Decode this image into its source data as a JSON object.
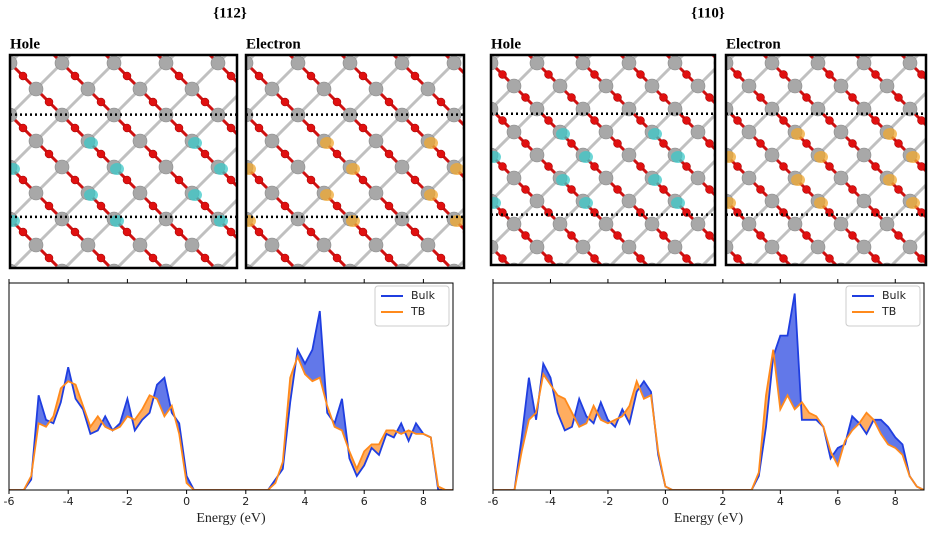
{
  "panels": [
    {
      "title": "{112}",
      "images": [
        "Hole",
        "Electron"
      ]
    },
    {
      "title": "{110}",
      "images": [
        "Hole",
        "Electron"
      ]
    }
  ],
  "chart_data": [
    {
      "type": "line",
      "xlabel": "Energy (eV)",
      "xlim": [
        -6,
        9
      ],
      "xticks": [
        -6,
        -4,
        -2,
        0,
        2,
        4,
        6,
        8
      ],
      "ylim": [
        0,
        5.9
      ],
      "legend": "upper right",
      "fill_between": true,
      "x": [
        -6,
        -5.75,
        -5.5,
        -5.25,
        -5,
        -4.75,
        -4.5,
        -4.25,
        -4,
        -3.75,
        -3.5,
        -3.25,
        -3,
        -2.75,
        -2.5,
        -2.25,
        -2,
        -1.75,
        -1.5,
        -1.25,
        -1,
        -0.75,
        -0.5,
        -0.25,
        0,
        0.25,
        0.5,
        0.75,
        1,
        1.25,
        1.5,
        1.75,
        2,
        2.25,
        2.5,
        2.75,
        3,
        3.25,
        3.5,
        3.75,
        4,
        4.25,
        4.5,
        4.75,
        5,
        5.25,
        5.5,
        5.75,
        6,
        6.25,
        6.5,
        6.75,
        7,
        7.25,
        7.5,
        7.75,
        8,
        8.25,
        8.5,
        8.75,
        9
      ],
      "series": [
        {
          "name": "Bulk",
          "color": "#1f3ee0",
          "values": [
            0,
            0,
            0,
            0.3,
            2.7,
            2.0,
            1.9,
            2.5,
            3.5,
            2.6,
            2.3,
            1.6,
            1.7,
            2.1,
            1.7,
            1.9,
            2.6,
            1.7,
            2.0,
            2.2,
            3.0,
            3.2,
            2.2,
            1.9,
            0.4,
            0,
            0,
            0,
            0,
            0,
            0,
            0,
            0,
            0,
            0,
            0,
            0.3,
            0.6,
            2.5,
            4.0,
            3.6,
            4.0,
            5.1,
            2.2,
            1.9,
            2.6,
            0.9,
            0.4,
            0.7,
            1.2,
            1.0,
            1.6,
            1.5,
            1.9,
            1.4,
            1.9,
            1.6,
            1.5,
            0,
            0,
            0
          ]
        },
        {
          "name": "TB",
          "color": "#ff8a1c",
          "values": [
            0,
            0,
            0,
            0.4,
            1.9,
            1.8,
            2.1,
            2.9,
            3.1,
            3.0,
            2.4,
            1.8,
            2.1,
            1.8,
            1.7,
            1.8,
            2.1,
            2.0,
            2.3,
            2.7,
            2.6,
            2.1,
            2.4,
            1.6,
            0.2,
            0,
            0,
            0,
            0,
            0,
            0,
            0,
            0,
            0,
            0,
            0,
            0.2,
            0.8,
            3.2,
            3.8,
            3.3,
            3.1,
            3.2,
            2.4,
            1.8,
            1.7,
            1.1,
            0.6,
            1.1,
            1.3,
            1.3,
            1.7,
            1.7,
            1.6,
            1.7,
            1.6,
            1.6,
            1.5,
            0.1,
            0,
            0
          ]
        }
      ]
    },
    {
      "type": "line",
      "xlabel": "Energy (eV)",
      "xlim": [
        -6,
        9
      ],
      "xticks": [
        -6,
        -4,
        -2,
        0,
        2,
        4,
        6,
        8
      ],
      "ylim": [
        0,
        5.9
      ],
      "legend": "upper right",
      "fill_between": true,
      "x": [
        -6,
        -5.75,
        -5.5,
        -5.25,
        -5,
        -4.75,
        -4.5,
        -4.25,
        -4,
        -3.75,
        -3.5,
        -3.25,
        -3,
        -2.75,
        -2.5,
        -2.25,
        -2,
        -1.75,
        -1.5,
        -1.25,
        -1,
        -0.75,
        -0.5,
        -0.25,
        0,
        0.25,
        0.5,
        0.75,
        1,
        1.25,
        1.5,
        1.75,
        2,
        2.25,
        2.5,
        2.75,
        3,
        3.25,
        3.5,
        3.75,
        4,
        4.25,
        4.5,
        4.75,
        5,
        5.25,
        5.5,
        5.75,
        6,
        6.25,
        6.5,
        6.75,
        7,
        7.25,
        7.5,
        7.75,
        8,
        8.25,
        8.5,
        8.75,
        9
      ],
      "series": [
        {
          "name": "Bulk",
          "color": "#1f3ee0",
          "values": [
            0,
            0,
            0,
            0,
            1.5,
            3.2,
            2.0,
            3.6,
            3.2,
            2.2,
            1.7,
            1.8,
            2.6,
            2.1,
            1.9,
            2.5,
            2.0,
            1.8,
            2.3,
            1.9,
            2.8,
            3.1,
            2.8,
            1.0,
            0.1,
            0,
            0,
            0,
            0,
            0,
            0,
            0,
            0,
            0,
            0,
            0,
            0,
            0.4,
            1.8,
            3.8,
            4.4,
            4.4,
            5.6,
            2.0,
            2.0,
            2.0,
            1.8,
            0.9,
            1.2,
            1.3,
            2.1,
            1.9,
            1.6,
            2.0,
            2.0,
            1.8,
            1.5,
            1.3,
            0.4,
            0.1,
            0
          ]
        },
        {
          "name": "TB",
          "color": "#ff8a1c",
          "values": [
            0,
            0,
            0,
            0,
            1.1,
            2.0,
            2.2,
            3.3,
            3.0,
            2.7,
            2.6,
            2.2,
            1.8,
            1.9,
            2.4,
            2.0,
            1.9,
            2.0,
            2.1,
            2.4,
            3.1,
            2.6,
            2.7,
            1.1,
            0.1,
            0,
            0,
            0,
            0,
            0,
            0,
            0,
            0,
            0,
            0,
            0,
            0,
            0.5,
            2.7,
            4.0,
            2.3,
            2.7,
            2.3,
            2.5,
            2.2,
            2.1,
            1.8,
            1.1,
            0.7,
            1.4,
            1.7,
            1.9,
            2.2,
            2.0,
            1.6,
            1.3,
            1.2,
            1.0,
            0.4,
            0.1,
            0
          ]
        }
      ]
    }
  ]
}
